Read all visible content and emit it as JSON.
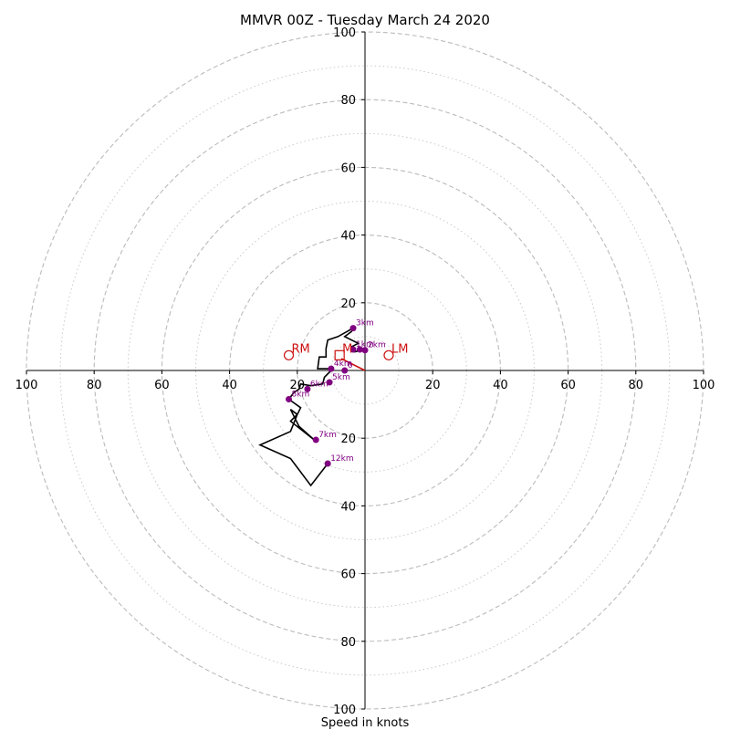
{
  "chart_data": {
    "type": "scatter",
    "title": "MMVR 00Z - Tuesday March 24 2020",
    "xlabel": "Speed in knots",
    "xlim": [
      -100,
      100
    ],
    "ylim": [
      -100,
      100
    ],
    "grid": true,
    "rings": {
      "major": [
        20,
        40,
        60,
        80,
        100
      ],
      "minor": [
        10,
        30,
        50,
        70,
        90
      ]
    },
    "x_tick_labels": [
      "100",
      "80",
      "60",
      "40",
      "20",
      "20",
      "40",
      "60",
      "80",
      "100"
    ],
    "y_tick_labels": [
      "100",
      "80",
      "60",
      "40",
      "20",
      "20",
      "40",
      "60",
      "80",
      "100"
    ],
    "x_ticks": [
      -100,
      -80,
      -60,
      -40,
      -20,
      20,
      40,
      60,
      80,
      100
    ],
    "y_ticks": [
      100,
      80,
      60,
      40,
      20,
      -20,
      -40,
      -60,
      -80,
      -100
    ],
    "series": [
      {
        "color": "#000000",
        "points": [
          [
            -1,
            6
          ],
          [
            -3,
            5.5
          ],
          [
            -4,
            7
          ],
          [
            -2,
            8
          ],
          [
            -6,
            10
          ],
          [
            -4,
            11.5
          ],
          [
            -3.5,
            12.5
          ],
          [
            -8,
            10
          ],
          [
            -11,
            9
          ],
          [
            -11.5,
            6.5
          ],
          [
            -11.5,
            4
          ],
          [
            -13.5,
            4
          ],
          [
            -14,
            0.5
          ],
          [
            -10.5,
            0.5
          ],
          [
            -10,
            0
          ],
          [
            -12,
            -2
          ],
          [
            -12.5,
            -4
          ],
          [
            -16,
            -4.5
          ],
          [
            -19,
            -4
          ],
          [
            -19.5,
            -5.5
          ],
          [
            -21,
            -6.5
          ],
          [
            -22.5,
            -8.5
          ],
          [
            -19,
            -11
          ],
          [
            -20,
            -13
          ],
          [
            -22,
            -15
          ],
          [
            -15,
            -20.5
          ],
          [
            -19.5,
            -16.5
          ],
          [
            -22,
            -11.5
          ],
          [
            -20,
            -13
          ],
          [
            -22,
            -18
          ],
          [
            -31,
            -22
          ],
          [
            -22,
            -26
          ],
          [
            -16,
            -34
          ],
          [
            -11,
            -27.5
          ]
        ]
      },
      {
        "color": "#cc1111",
        "points": [
          [
            -7,
            3.5
          ],
          [
            0,
            0
          ]
        ]
      }
    ],
    "height_markers": [
      {
        "label": "3km",
        "x": -3.5,
        "y": 12.5
      },
      {
        "label": "1km",
        "x": -3.5,
        "y": 6.2
      },
      {
        "label": "2km",
        "x": 0,
        "y": 6
      },
      {
        "label": "",
        "x": -1.5,
        "y": 6.2
      },
      {
        "label": "4km",
        "x": -10,
        "y": 0.5
      },
      {
        "label": "6",
        "x": -6,
        "y": 0
      },
      {
        "label": "5km",
        "x": -10.5,
        "y": -3.5
      },
      {
        "label": "6km",
        "x": -17,
        "y": -5.5
      },
      {
        "label": "8km",
        "x": -22.5,
        "y": -8.5
      },
      {
        "label": "7km",
        "x": -14.5,
        "y": -20.5
      },
      {
        "label": "12km",
        "x": -11,
        "y": -27.5
      }
    ],
    "motion_markers": [
      {
        "label": "RM",
        "x": -22.5,
        "y": 4.5,
        "marker": "circle"
      },
      {
        "label": "LM",
        "x": 7,
        "y": 4.5,
        "marker": "circle"
      },
      {
        "label": "M",
        "x": -7.5,
        "y": 4.5,
        "marker": "square"
      }
    ],
    "colors": {
      "hodograph": "#000000",
      "heights": "#800080",
      "motion": "#cc1111",
      "grid": "#bbbbbb"
    }
  }
}
